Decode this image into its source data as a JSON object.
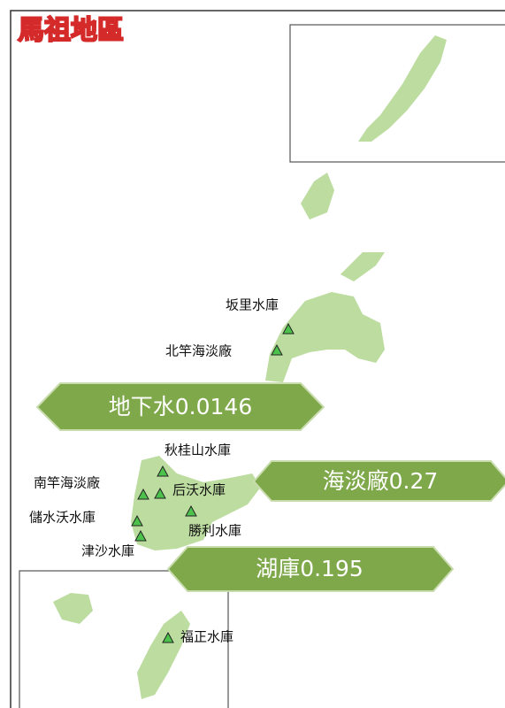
{
  "title": "馬祖地區",
  "reservoirs": [
    {
      "label": "坂里水庫"
    },
    {
      "label": "北竿海淡廠"
    },
    {
      "label": "秋桂山水庫"
    },
    {
      "label": "南竿海淡廠"
    },
    {
      "label": "后沃水庫"
    },
    {
      "label": "儲水沃水庫"
    },
    {
      "label": "勝利水庫"
    },
    {
      "label": "津沙水庫"
    },
    {
      "label": "福正水庫"
    }
  ],
  "banners": [
    {
      "label": "地下水0.0146"
    },
    {
      "label": "海淡廠0.27"
    },
    {
      "label": "湖庫0.195"
    }
  ]
}
